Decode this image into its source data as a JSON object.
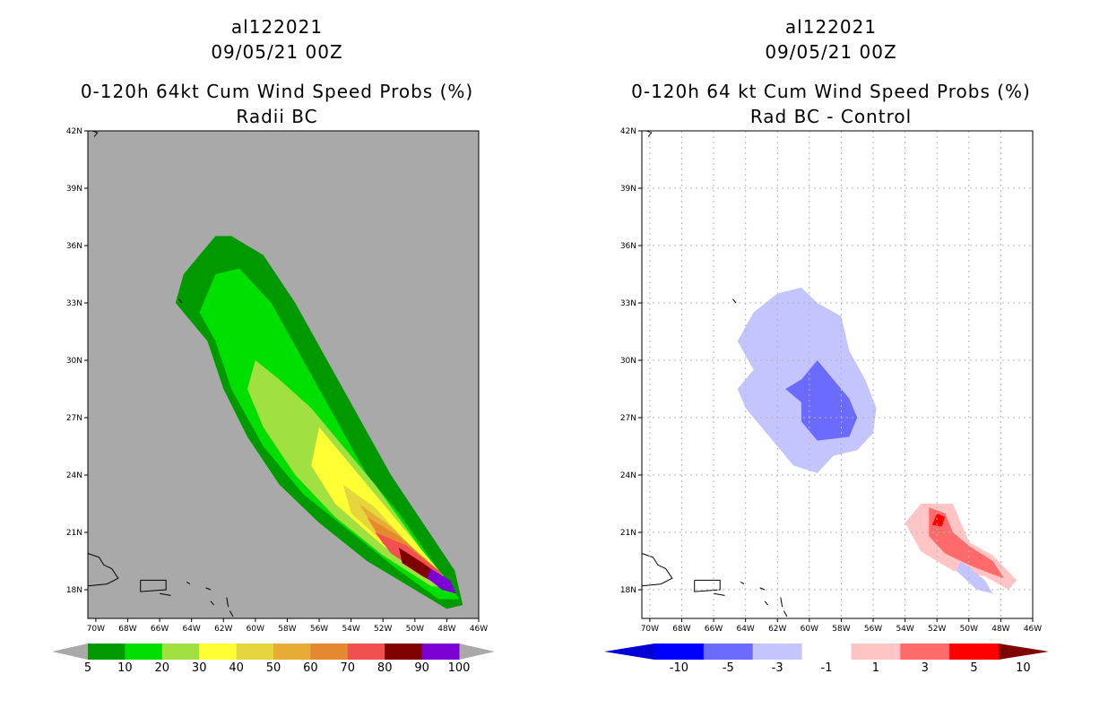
{
  "panels": [
    {
      "id": "left",
      "title_storm": "al122021",
      "title_date": "09/05/21 00Z",
      "title_product": "0-120h 64kt Cum Wind Speed Probs (%)",
      "title_sub": "Radii BC",
      "lat_ticks": [
        "42N",
        "39N",
        "36N",
        "33N",
        "30N",
        "27N",
        "24N",
        "21N",
        "18N"
      ],
      "lon_ticks": [
        "70W",
        "68W",
        "66W",
        "64W",
        "62W",
        "60W",
        "58W",
        "56W",
        "54W",
        "52W",
        "50W",
        "48W",
        "46W"
      ],
      "colorbar": {
        "labels": [
          "5",
          "10",
          "20",
          "30",
          "40",
          "50",
          "60",
          "70",
          "80",
          "90",
          "100"
        ],
        "colors": [
          "#009900",
          "#00e000",
          "#a0e040",
          "#ffff33",
          "#e6d63d",
          "#e6ac33",
          "#e6892e",
          "#f05050",
          "#800000",
          "#7f00d6"
        ]
      },
      "background": "#a9a9a9"
    },
    {
      "id": "right",
      "title_storm": "al122021",
      "title_date": "09/05/21 00Z",
      "title_product": "0-120h 64 kt Cum Wind Speed Probs (%)",
      "title_sub": "Rad BC - Control",
      "lat_ticks": [
        "42N",
        "39N",
        "36N",
        "33N",
        "30N",
        "27N",
        "24N",
        "21N",
        "18N"
      ],
      "lon_ticks": [
        "70W",
        "68W",
        "66W",
        "64W",
        "62W",
        "60W",
        "58W",
        "56W",
        "54W",
        "52W",
        "50W",
        "48W",
        "46W"
      ],
      "colorbar": {
        "labels": [
          "-10",
          "-5",
          "-3",
          "-1",
          "1",
          "3",
          "5",
          "10"
        ],
        "colors": [
          "#0000d6",
          "#0000ff",
          "#6b6bff",
          "#c4c4ff",
          "#ffffff",
          "#ffc4c4",
          "#ff6b6b",
          "#ff0000",
          "#800000"
        ]
      },
      "background": "#ffffff"
    }
  ],
  "map_data": {
    "lat_range": [
      16.5,
      42
    ],
    "lon_range": [
      -70.5,
      -46
    ],
    "left_contours": [
      {
        "level": "5-10",
        "color": "#009900",
        "points": [
          [
            -63.5,
            35.5
          ],
          [
            -62.5,
            36.5
          ],
          [
            -61.5,
            36.5
          ],
          [
            -59.5,
            35.5
          ],
          [
            -57.5,
            33
          ],
          [
            -55.5,
            30
          ],
          [
            -53.5,
            27
          ],
          [
            -51.5,
            24
          ],
          [
            -49.5,
            21.5
          ],
          [
            -47.5,
            19
          ],
          [
            -47,
            17.2
          ],
          [
            -48,
            17
          ],
          [
            -50,
            18
          ],
          [
            -53,
            19.5
          ],
          [
            -56,
            21.5
          ],
          [
            -58.5,
            23.5
          ],
          [
            -60.5,
            26
          ],
          [
            -62,
            28.5
          ],
          [
            -63,
            31
          ],
          [
            -65,
            33
          ],
          [
            -64.5,
            34.5
          ]
        ]
      },
      {
        "level": "10-20",
        "color": "#00e000",
        "points": [
          [
            -62.5,
            34.5
          ],
          [
            -61,
            34.8
          ],
          [
            -59,
            33
          ],
          [
            -57,
            30
          ],
          [
            -55,
            27
          ],
          [
            -53,
            24
          ],
          [
            -51,
            22
          ],
          [
            -48.5,
            19
          ],
          [
            -47.2,
            17.5
          ],
          [
            -48.5,
            17.5
          ],
          [
            -51,
            19
          ],
          [
            -54,
            21
          ],
          [
            -57,
            23
          ],
          [
            -59.5,
            25.5
          ],
          [
            -61.5,
            28.5
          ],
          [
            -62.5,
            31
          ],
          [
            -63.5,
            32.5
          ]
        ]
      },
      {
        "level": "20-30",
        "color": "#a0e040",
        "points": [
          [
            -60,
            30
          ],
          [
            -58.5,
            29
          ],
          [
            -56.5,
            27.5
          ],
          [
            -54.5,
            25.5
          ],
          [
            -52.5,
            23.5
          ],
          [
            -49.5,
            20
          ],
          [
            -47.5,
            18
          ],
          [
            -49,
            18.2
          ],
          [
            -52,
            19.8
          ],
          [
            -55,
            21.8
          ],
          [
            -57.5,
            24
          ],
          [
            -59.5,
            26.5
          ],
          [
            -60.5,
            28.5
          ]
        ]
      },
      {
        "level": "30-40",
        "color": "#ffff33",
        "points": [
          [
            -56,
            26.5
          ],
          [
            -54.5,
            25
          ],
          [
            -52.5,
            23
          ],
          [
            -50,
            20.5
          ],
          [
            -47.5,
            18
          ],
          [
            -49,
            18.5
          ],
          [
            -52,
            20.3
          ],
          [
            -55,
            22.5
          ],
          [
            -56.5,
            24.5
          ]
        ]
      },
      {
        "level": "40-50",
        "color": "#e6d63d",
        "points": [
          [
            -54.5,
            23.5
          ],
          [
            -52.5,
            22.3
          ],
          [
            -50,
            20
          ],
          [
            -47.5,
            18
          ],
          [
            -49.5,
            18.8
          ],
          [
            -52,
            20.5
          ],
          [
            -54,
            22
          ]
        ]
      },
      {
        "level": "50-60",
        "color": "#e6ac33",
        "points": [
          [
            -53.5,
            22.5
          ],
          [
            -51.5,
            21.3
          ],
          [
            -49,
            19.3
          ],
          [
            -47.5,
            17.8
          ],
          [
            -49.5,
            18.8
          ],
          [
            -52,
            20.5
          ]
        ]
      },
      {
        "level": "60-70",
        "color": "#e6892e",
        "points": [
          [
            -53,
            21.8
          ],
          [
            -51,
            20.8
          ],
          [
            -48.5,
            19
          ],
          [
            -47.5,
            17.8
          ],
          [
            -49.5,
            18.9
          ],
          [
            -52,
            20.4
          ]
        ]
      },
      {
        "level": "70-80",
        "color": "#f05050",
        "points": [
          [
            -52.5,
            21
          ],
          [
            -50.5,
            20.3
          ],
          [
            -48.5,
            19
          ],
          [
            -47.5,
            17.8
          ],
          [
            -49.5,
            18.8
          ],
          [
            -51.5,
            19.9
          ]
        ]
      },
      {
        "level": "80-90",
        "color": "#800000",
        "points": [
          [
            -51,
            20.2
          ],
          [
            -49.5,
            19.4
          ],
          [
            -48,
            18.5
          ],
          [
            -47.5,
            17.8
          ],
          [
            -49.5,
            18.7
          ],
          [
            -50.8,
            19.4
          ]
        ]
      },
      {
        "level": "90-100",
        "color": "#7f00d6",
        "points": [
          [
            -49,
            19.1
          ],
          [
            -47.8,
            18.5
          ],
          [
            -47.4,
            17.8
          ],
          [
            -48.3,
            18
          ],
          [
            -49.2,
            18.6
          ]
        ]
      }
    ],
    "right_contours": [
      {
        "level": "-3 to -1",
        "color": "#c4c4ff",
        "points": [
          [
            -62,
            33.5
          ],
          [
            -60.5,
            33.8
          ],
          [
            -59.5,
            33
          ],
          [
            -58,
            32.3
          ],
          [
            -57.5,
            30.5
          ],
          [
            -56.5,
            29
          ],
          [
            -55.8,
            27.5
          ],
          [
            -56,
            26.2
          ],
          [
            -57,
            25.3
          ],
          [
            -58.5,
            25
          ],
          [
            -59.5,
            24.1
          ],
          [
            -61,
            24.5
          ],
          [
            -62,
            25.5
          ],
          [
            -63,
            26.5
          ],
          [
            -64,
            27.5
          ],
          [
            -64.5,
            28.5
          ],
          [
            -63.5,
            29.5
          ],
          [
            -64.5,
            31
          ],
          [
            -63.5,
            32.5
          ]
        ]
      },
      {
        "level": "-5 to -3",
        "color": "#6b6bff",
        "points": [
          [
            -59.5,
            30
          ],
          [
            -58.5,
            29
          ],
          [
            -57.5,
            28
          ],
          [
            -57,
            27
          ],
          [
            -57.5,
            26
          ],
          [
            -59.5,
            25.8
          ],
          [
            -60.5,
            26.8
          ],
          [
            -60.5,
            27.8
          ],
          [
            -61.5,
            28.5
          ],
          [
            -60.5,
            29
          ]
        ]
      },
      {
        "level": "1 to 3",
        "color": "#ffc4c4",
        "points": [
          [
            -53,
            22.5
          ],
          [
            -51,
            22.5
          ],
          [
            -50.5,
            21.5
          ],
          [
            -50,
            20.5
          ],
          [
            -48.5,
            19.8
          ],
          [
            -47,
            18.5
          ],
          [
            -47.5,
            18
          ],
          [
            -49,
            18.7
          ],
          [
            -51,
            19
          ],
          [
            -53,
            20
          ],
          [
            -54,
            21.5
          ]
        ]
      },
      {
        "level": "3 to 5",
        "color": "#ff6b6b",
        "points": [
          [
            -52.5,
            22.3
          ],
          [
            -51.5,
            22
          ],
          [
            -51,
            21
          ],
          [
            -50,
            20.3
          ],
          [
            -48.5,
            19.5
          ],
          [
            -47.8,
            18.6
          ],
          [
            -48.5,
            18.8
          ],
          [
            -50,
            19.3
          ],
          [
            -51.5,
            19.9
          ],
          [
            -52.5,
            20.8
          ]
        ]
      },
      {
        "level": "5 to 10",
        "color": "#ff0000",
        "points": [
          [
            -52,
            22
          ],
          [
            -51.5,
            21.8
          ],
          [
            -51.7,
            21.3
          ],
          [
            -52.3,
            21.4
          ]
        ]
      },
      {
        "level": "-3 to -1 (small)",
        "color": "#c4c4ff",
        "points": [
          [
            -50.5,
            19.5
          ],
          [
            -49,
            18.5
          ],
          [
            -48.5,
            17.8
          ],
          [
            -49.5,
            18
          ],
          [
            -50.8,
            19
          ]
        ]
      }
    ]
  }
}
